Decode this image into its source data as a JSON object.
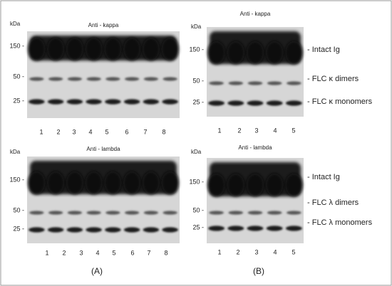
{
  "panels": [
    {
      "caption": "(A)",
      "blots": [
        {
          "title": "Anti - kappa",
          "unit": "kDa",
          "markers": [
            "150 -",
            "50 -",
            "25 -"
          ],
          "lanes": [
            "1",
            "2",
            "3",
            "4",
            "5",
            "6",
            "7",
            "8"
          ]
        },
        {
          "title": "Anti - lambda",
          "unit": "kDa",
          "markers": [
            "150 -",
            "50 -",
            "25 -"
          ],
          "lanes": [
            "1",
            "2",
            "3",
            "4",
            "5",
            "6",
            "7",
            "8"
          ]
        }
      ]
    },
    {
      "caption": "(B)",
      "blots": [
        {
          "title": "Anti - kappa",
          "unit": "kDa",
          "markers": [
            "150 -",
            "50 -",
            "25 -"
          ],
          "lanes": [
            "1",
            "2",
            "3",
            "4",
            "5"
          ],
          "band_labels": [
            "- Intact Ig",
            "- FLC κ dimers",
            "- FLC κ monomers"
          ]
        },
        {
          "title": "Anti - lambda",
          "unit": "kDa",
          "markers": [
            "150 -",
            "50 -",
            "25 -"
          ],
          "lanes": [
            "1",
            "2",
            "3",
            "4",
            "5"
          ],
          "band_labels": [
            "- Intact Ig",
            "- FLC λ dimers",
            "- FLC λ monomers"
          ]
        }
      ]
    }
  ]
}
